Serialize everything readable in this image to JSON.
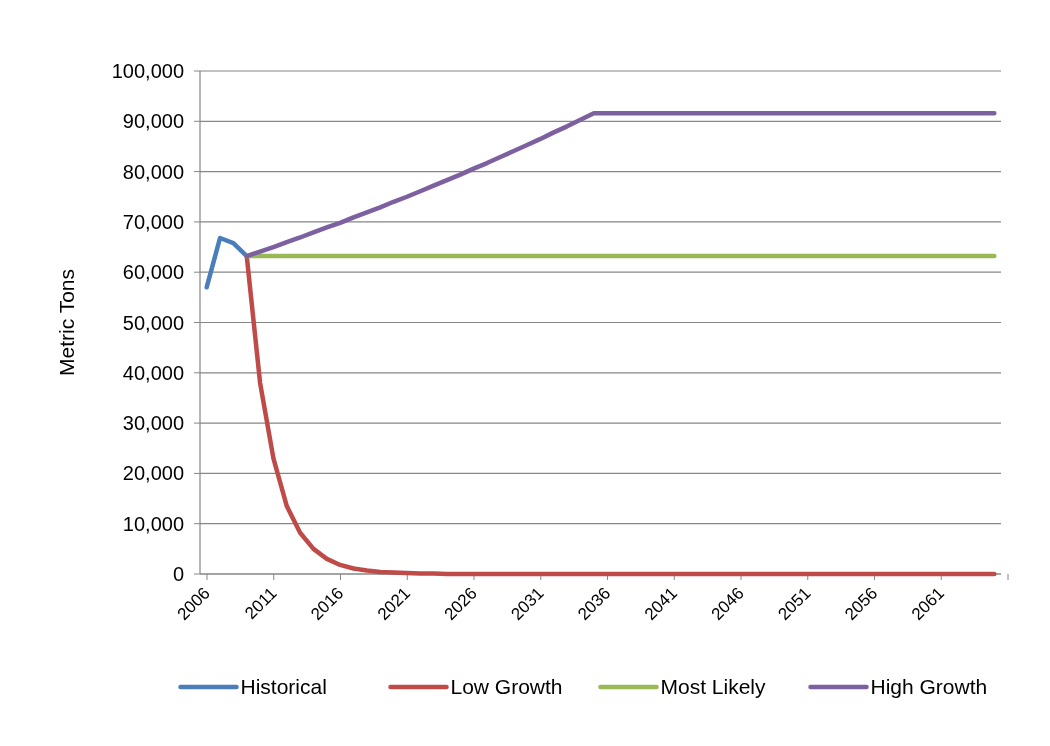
{
  "chart_data": {
    "type": "line",
    "ylabel": "Metric Tons",
    "categories": [
      "2006",
      null,
      null,
      null,
      null,
      "2011",
      null,
      null,
      null,
      null,
      "2016",
      null,
      null,
      null,
      null,
      "2021",
      null,
      null,
      null,
      null,
      "2026",
      null,
      null,
      null,
      null,
      "2031",
      null,
      null,
      null,
      null,
      "2036",
      null,
      null,
      null,
      null,
      "2041",
      null,
      null,
      null,
      null,
      "2046",
      null,
      null,
      null,
      null,
      "2051",
      null,
      null,
      null,
      null,
      "2056",
      null,
      null,
      null,
      null,
      "2061",
      null,
      null,
      null,
      null
    ],
    "series": [
      {
        "name": "Historical",
        "color": "#4a7ebb",
        "values": [
          57000,
          66800,
          65800,
          63200,
          null,
          null,
          null,
          null,
          null,
          null,
          null,
          null,
          null,
          null,
          null,
          null,
          null,
          null,
          null,
          null,
          null,
          null,
          null,
          null,
          null,
          null,
          null,
          null,
          null,
          null,
          null,
          null,
          null,
          null,
          null,
          null,
          null,
          null,
          null,
          null,
          null,
          null,
          null,
          null,
          null,
          null,
          null,
          null,
          null,
          null,
          null,
          null,
          null,
          null,
          null,
          null,
          null,
          null,
          null,
          null
        ]
      },
      {
        "name": "Low Growth",
        "color": "#be4b48",
        "values": [
          null,
          null,
          null,
          63200,
          38000,
          23000,
          13500,
          8200,
          5000,
          3000,
          1800,
          1100,
          700,
          400,
          300,
          200,
          100,
          100,
          0,
          0,
          0,
          0,
          0,
          0,
          0,
          0,
          0,
          0,
          0,
          0,
          0,
          0,
          0,
          0,
          0,
          0,
          0,
          0,
          0,
          0,
          0,
          0,
          0,
          0,
          0,
          0,
          0,
          0,
          0,
          0,
          0,
          0,
          0,
          0,
          0,
          0,
          0,
          0,
          0,
          0
        ]
      },
      {
        "name": "Most Likely",
        "color": "#98b954",
        "values": [
          null,
          null,
          null,
          63200,
          63200,
          63200,
          63200,
          63200,
          63200,
          63200,
          63200,
          63200,
          63200,
          63200,
          63200,
          63200,
          63200,
          63200,
          63200,
          63200,
          63200,
          63200,
          63200,
          63200,
          63200,
          63200,
          63200,
          63200,
          63200,
          63200,
          63200,
          63200,
          63200,
          63200,
          63200,
          63200,
          63200,
          63200,
          63200,
          63200,
          63200,
          63200,
          63200,
          63200,
          63200,
          63200,
          63200,
          63200,
          63200,
          63200,
          63200,
          63200,
          63200,
          63200,
          63200,
          63200,
          63200,
          63200,
          63200,
          63200
        ]
      },
      {
        "name": "High Growth",
        "color": "#7d60a0",
        "values": [
          null,
          null,
          null,
          63200,
          64100,
          65000,
          66000,
          66900,
          67900,
          68900,
          69800,
          70900,
          71900,
          72900,
          74000,
          75000,
          76100,
          77200,
          78300,
          79400,
          80600,
          81700,
          82900,
          84100,
          85300,
          86500,
          87800,
          89000,
          90300,
          91600,
          91600,
          91600,
          91600,
          91600,
          91600,
          91600,
          91600,
          91600,
          91600,
          91600,
          91600,
          91600,
          91600,
          91600,
          91600,
          91600,
          91600,
          91600,
          91600,
          91600,
          91600,
          91600,
          91600,
          91600,
          91600,
          91600,
          91600,
          91600,
          91600,
          91600
        ]
      }
    ],
    "ylim": [
      0,
      100000
    ],
    "yticks": [
      {
        "value": 0,
        "label": "0"
      },
      {
        "value": 10000,
        "label": "10,000"
      },
      {
        "value": 20000,
        "label": "20,000"
      },
      {
        "value": 30000,
        "label": "30,000"
      },
      {
        "value": 40000,
        "label": "40,000"
      },
      {
        "value": 50000,
        "label": "50,000"
      },
      {
        "value": 60000,
        "label": "60,000"
      },
      {
        "value": 70000,
        "label": "70,000"
      },
      {
        "value": 80000,
        "label": "80,000"
      },
      {
        "value": 90000,
        "label": "90,000"
      },
      {
        "value": 100000,
        "label": "100,000"
      }
    ],
    "grid": "y",
    "legend": "bottom",
    "marker": "none",
    "line_style": "solid"
  }
}
